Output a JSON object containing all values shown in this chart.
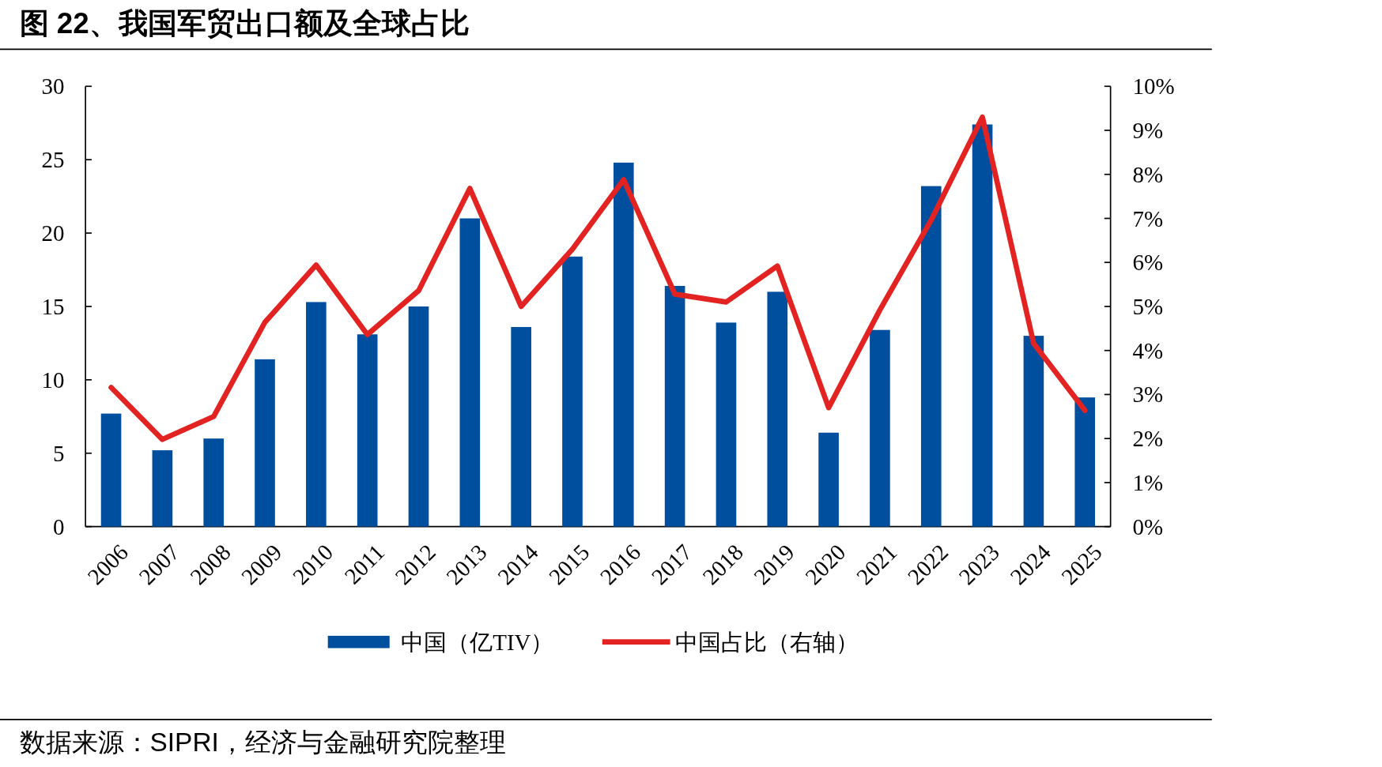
{
  "chart_data": {
    "type": "bar",
    "title": "图 22、我国军贸出口额及全球占比",
    "categories": [
      "2006",
      "2007",
      "2008",
      "2009",
      "2010",
      "2011",
      "2012",
      "2013",
      "2014",
      "2015",
      "2016",
      "2017",
      "2018",
      "2019",
      "2020",
      "2021",
      "2022",
      "2023",
      "2024",
      "2025"
    ],
    "series": [
      {
        "name": "中国（亿TIV）",
        "color": "#004f9f",
        "values": [
          7.7,
          5.2,
          6.0,
          11.4,
          15.3,
          13.1,
          15.0,
          21.0,
          13.6,
          18.4,
          24.8,
          16.4,
          13.9,
          16.0,
          6.4,
          13.4,
          23.2,
          27.4,
          13.0,
          8.8
        ]
      },
      {
        "name": "中国占比（右轴）",
        "type": "line",
        "axis": "y2",
        "color": "#e32322",
        "values": [
          3.16,
          1.98,
          2.5,
          4.64,
          5.94,
          4.36,
          5.36,
          7.68,
          5.0,
          6.3,
          7.88,
          5.28,
          5.1,
          5.92,
          2.7,
          4.92,
          6.96,
          9.3,
          4.16,
          2.64
        ]
      }
    ],
    "ylim": [
      0,
      30
    ],
    "yticks": [
      0,
      5,
      10,
      15,
      20,
      25,
      30
    ],
    "y2lim": [
      0,
      10
    ],
    "y2ticks": [
      {
        "value": 0,
        "label": "0%"
      },
      {
        "value": 1,
        "label": "1%"
      },
      {
        "value": 2,
        "label": "2%"
      },
      {
        "value": 3,
        "label": "3%"
      },
      {
        "value": 4,
        "label": "4%"
      },
      {
        "value": 5,
        "label": "5%"
      },
      {
        "value": 6,
        "label": "6%"
      },
      {
        "value": 7,
        "label": "7%"
      },
      {
        "value": 8,
        "label": "8%"
      },
      {
        "value": 9,
        "label": "9%"
      },
      {
        "value": 10,
        "label": "10%"
      }
    ],
    "legend": "bottom",
    "annotations": [
      "数据来源：SIPRI，经济与金融研究院整理"
    ]
  }
}
